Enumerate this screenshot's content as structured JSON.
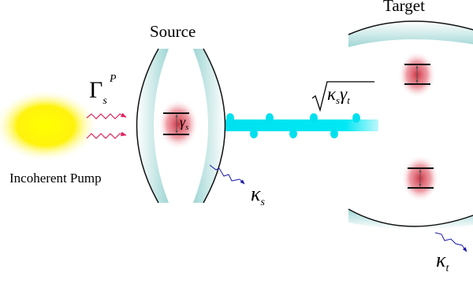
{
  "labels": {
    "source": "Source",
    "target": "Target",
    "pump": "Incoherent Pump",
    "pump_rate": {
      "main": "Γ",
      "sub": "s",
      "sup": "P"
    },
    "source_decay": {
      "main": "κ",
      "sub": "s"
    },
    "target_decay": {
      "main": "κ",
      "sub": "t"
    },
    "source_linewidth": {
      "main": "γ",
      "sub": "s"
    },
    "coupling": {
      "k": "κ",
      "ks": "s",
      "g": "γ",
      "gt": "t"
    }
  },
  "colors": {
    "pump_core": "#ffff00",
    "pump_edge": "#ffffff",
    "mirror": "#bfe6e6",
    "beam": "#00e5f0",
    "atom": "#d81b2a",
    "pump_arrow": "#e0245e",
    "decay_arrow": "#1a1aa8"
  },
  "icons": [
    "pump-glow",
    "source-cavity",
    "target-cavity",
    "two-level-atom",
    "coupling-beam"
  ]
}
